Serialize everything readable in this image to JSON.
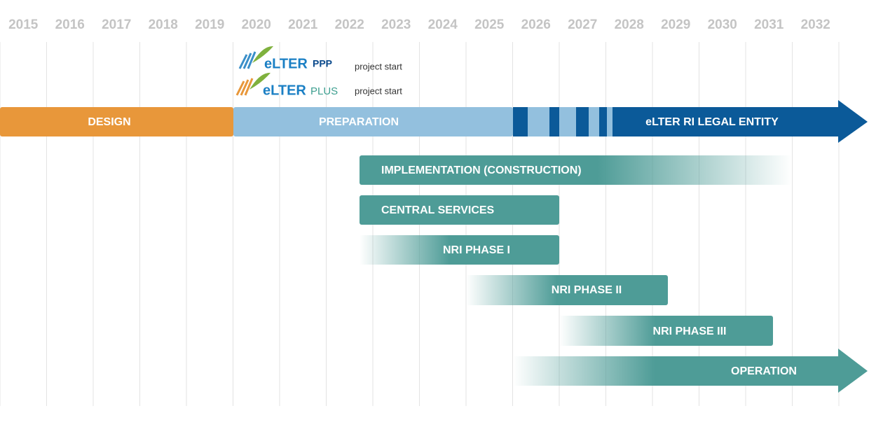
{
  "years": [
    "2015",
    "2016",
    "2017",
    "2018",
    "2019",
    "2020",
    "2021",
    "2022",
    "2023",
    "2024",
    "2025",
    "2026",
    "2027",
    "2028",
    "2029",
    "2030",
    "2031",
    "2032"
  ],
  "logos": [
    {
      "name": "eLTER",
      "suffix": "PPP",
      "note": "project start"
    },
    {
      "name": "eLTER",
      "suffix": "PLUS",
      "note": "project start"
    }
  ],
  "phases": [
    {
      "label": "DESIGN"
    },
    {
      "label": "PREPARATION"
    },
    {
      "label": "eLTER RI LEGAL ENTITY"
    }
  ],
  "tracks": [
    {
      "label": "IMPLEMENTATION  (CONSTRUCTION)"
    },
    {
      "label": "CENTRAL SERVICES"
    },
    {
      "label": "NRI PHASE I"
    },
    {
      "label": "NRI PHASE II"
    },
    {
      "label": "NRI PHASE III"
    },
    {
      "label": "OPERATION"
    }
  ]
}
